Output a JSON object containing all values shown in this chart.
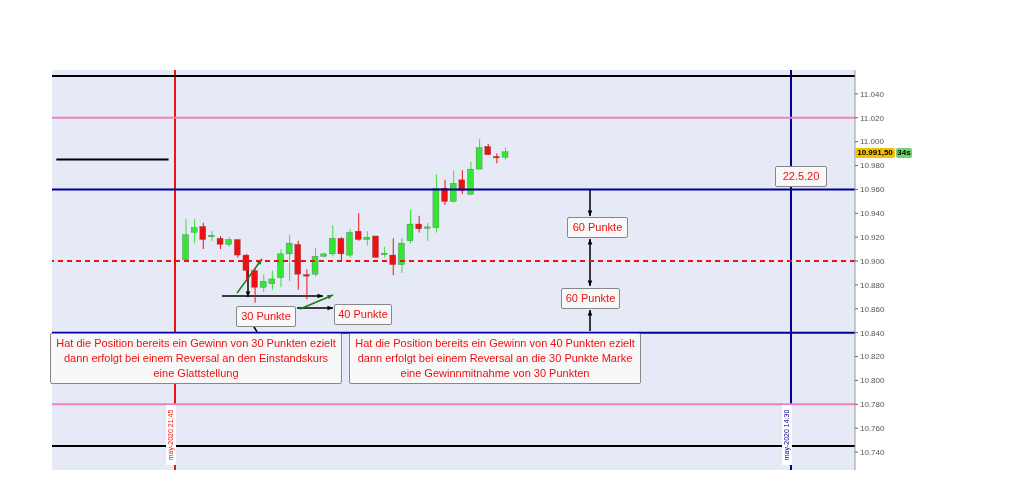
{
  "chart_data": {
    "type": "candlestick",
    "categories": [
      null,
      null,
      null,
      null,
      null,
      null,
      null,
      null,
      null,
      null,
      null,
      null,
      null,
      null,
      null,
      null,
      null,
      null,
      null,
      null,
      null,
      null,
      null,
      null,
      null,
      null,
      null,
      null,
      null,
      null,
      null,
      null,
      null,
      null,
      null,
      null,
      null,
      null,
      null,
      null,
      null,
      null,
      null,
      null,
      null,
      null,
      null,
      null,
      null,
      null,
      null,
      null,
      null,
      null,
      null,
      null,
      null,
      null,
      null,
      null,
      null,
      null,
      null,
      null,
      null,
      null,
      null,
      null,
      null,
      null,
      null,
      null,
      null,
      null,
      null,
      null,
      null,
      null,
      null,
      null,
      null,
      null,
      null,
      null,
      null,
      null,
      null,
      null,
      null,
      null,
      null,
      null,
      null
    ],
    "ohlc": [
      null,
      null,
      null,
      null,
      null,
      null,
      null,
      null,
      null,
      null,
      null,
      null,
      null,
      null,
      null,
      [
        10901,
        10935,
        10900,
        10922
      ],
      [
        10924,
        10935,
        10915,
        10928
      ],
      [
        10929,
        10932,
        10910,
        10918
      ],
      [
        10920,
        10925,
        10917,
        10921
      ],
      [
        10919,
        10921,
        10910,
        10914
      ],
      [
        10914,
        10920,
        10912,
        10918
      ],
      [
        10918,
        10918,
        10903,
        10905
      ],
      [
        10905,
        10906,
        10883,
        10892
      ],
      [
        10892,
        10894,
        10865,
        10878
      ],
      [
        10878,
        10889,
        10874,
        10883
      ],
      [
        10881,
        10892,
        10876,
        10885
      ],
      [
        10886,
        10910,
        10878,
        10906
      ],
      [
        10906,
        10922,
        10883,
        10915
      ],
      [
        10914,
        10917,
        10876,
        10889
      ],
      [
        10888,
        10893,
        10868,
        10888
      ],
      [
        10889,
        10911,
        10887,
        10904
      ],
      [
        10904,
        10907,
        10903,
        10906
      ],
      [
        10906,
        10930,
        10904,
        10919
      ],
      [
        10919,
        10920,
        10900,
        10906
      ],
      [
        10905,
        10927,
        10903,
        10924
      ],
      [
        10925,
        10940,
        10917,
        10918
      ],
      [
        10918,
        10925,
        10913,
        10920
      ],
      [
        10921,
        10921,
        10903,
        10903
      ],
      [
        10905,
        10912,
        10903,
        10906
      ],
      [
        10905,
        10919,
        10888,
        10897
      ],
      [
        10897,
        10919,
        10890,
        10915
      ],
      [
        10917,
        10943,
        10915,
        10931
      ],
      [
        10931,
        10938,
        10924,
        10927
      ],
      [
        10927,
        10932,
        10917,
        10928
      ],
      [
        10928,
        10973,
        10924,
        10961
      ],
      [
        10961,
        10968,
        10947,
        10950
      ],
      [
        10950,
        10976,
        10949,
        10965
      ],
      [
        10968,
        10976,
        10956,
        10959
      ],
      [
        10956,
        10983,
        10955,
        10977
      ],
      [
        10977,
        11002,
        10977,
        10995
      ],
      [
        10996,
        10998,
        10989,
        10989
      ],
      [
        10987,
        10990,
        10982,
        10987
      ],
      [
        10987,
        10995,
        10985,
        10991.5
      ],
      null,
      null,
      null,
      null,
      null,
      null,
      null,
      null,
      null,
      null,
      null,
      null,
      null,
      null,
      null,
      null,
      null,
      null,
      null,
      null,
      null,
      null,
      null,
      null,
      null,
      null,
      null,
      null,
      null,
      null,
      null,
      null,
      null,
      null,
      null,
      null,
      null,
      null,
      null,
      null
    ],
    "colors": [
      null,
      null,
      null,
      null,
      null,
      null,
      null,
      null,
      null,
      null,
      null,
      null,
      null,
      null,
      null,
      "#33e633",
      "#33e633",
      "#ee1111",
      "#33e633",
      "#ee1111",
      "#33e633",
      "#ee1111",
      "#ee1111",
      "#ee1111",
      "#33e633",
      "#33e633",
      "#33e633",
      "#33e633",
      "#ee1111",
      "#ee1111",
      "#33e633",
      "#33e633",
      "#33e633",
      "#ee1111",
      "#33e633",
      "#ee1111",
      "#33e633",
      "#ee1111",
      "#33e633",
      "#ee1111",
      "#33e633",
      "#33e633",
      "#ee1111",
      "#33e633",
      "#33e633",
      "#ee1111",
      "#33e633",
      "#ee1111",
      "#33e633",
      "#33e633",
      "#ee1111",
      "#ee1111",
      "#33e633",
      null,
      null,
      null,
      null,
      null,
      null,
      null,
      null,
      null,
      null,
      null,
      null,
      null,
      null,
      null,
      null,
      null,
      null,
      null,
      null,
      null,
      null,
      null,
      null,
      null,
      null,
      null,
      null,
      null,
      null,
      null,
      null,
      null,
      null,
      null,
      null,
      null,
      null,
      null,
      null
    ],
    "series": [
      {
        "type": "line",
        "color": "#000000",
        "values": [
          10985,
          10985,
          10985,
          10985,
          10985,
          10985,
          10985,
          10985,
          10985,
          10985,
          10985,
          10985,
          10985,
          10985,
          null,
          null,
          null,
          null,
          null,
          null,
          null,
          null,
          null,
          null,
          null,
          null,
          null,
          null,
          null,
          null,
          null,
          null,
          null,
          null,
          null,
          null,
          null,
          null,
          null,
          null,
          null,
          null,
          null,
          null,
          null,
          null,
          null,
          null,
          null,
          null,
          null,
          null,
          null,
          null,
          null,
          null,
          null,
          null,
          null,
          null,
          null,
          null,
          null,
          null,
          null,
          null,
          null,
          null,
          null,
          null,
          null,
          null,
          null,
          null,
          null,
          null,
          null,
          null,
          null,
          null,
          null,
          null,
          null,
          null,
          null,
          null,
          null,
          null,
          null,
          null,
          null,
          null,
          null
        ]
      }
    ],
    "ylim": [
      10725,
      11060
    ],
    "yticks": [
      {
        "value": 10740,
        "label": "10.740"
      },
      {
        "value": 10760,
        "label": "10.760"
      },
      {
        "value": 10780,
        "label": "10.780"
      },
      {
        "value": 10800,
        "label": "10.800"
      },
      {
        "value": 10820,
        "label": "10.820"
      },
      {
        "value": 10840,
        "label": "10.840"
      },
      {
        "value": 10860,
        "label": "10.860"
      },
      {
        "value": 10880,
        "label": "10.880"
      },
      {
        "value": 10900,
        "label": "10.900"
      },
      {
        "value": 10920,
        "label": "10.920"
      },
      {
        "value": 10940,
        "label": "10.940"
      },
      {
        "value": 10960,
        "label": "10.960"
      },
      {
        "value": 10980,
        "label": "10.980"
      },
      {
        "value": 11000,
        "label": "11.000"
      },
      {
        "value": 11020,
        "label": "11.020"
      },
      {
        "value": 11040,
        "label": "11.040"
      }
    ],
    "tick_labels": "y",
    "ref_lines": [
      {
        "axis": "y",
        "value": 11055,
        "color": "#000000"
      },
      {
        "axis": "y",
        "value": 11020,
        "color": "#f080c0"
      },
      {
        "axis": "y",
        "value": 10960,
        "color": "#000099"
      },
      {
        "axis": "y",
        "value": 10900,
        "color": "#ee1111",
        "line_style": "dashed"
      },
      {
        "axis": "y",
        "value": 10840,
        "color": "#000099"
      },
      {
        "axis": "y",
        "value": 10780,
        "color": "#f080c0"
      },
      {
        "axis": "y",
        "value": 10745,
        "color": "#000000"
      }
    ],
    "annotations": [
      "30 Punkte",
      "40 Punkte",
      "60 Punkte",
      "60 Punkte",
      "Hat die Position bereits ein Gewinn von 30 Punkten ezielt\ndann erfolgt bei einem Reversal an den Einstandskurs\neine Glattstellung",
      "Hat die Position bereits ein Gewinn von 40 Punkten ezielt\ndann erfolgt bei einem Reversal an die 30 Punkte Marke\neine Gewinnmitnahme von 30 Punkten",
      "22.5.20",
      "10.991,50",
      "34s",
      "may-2020 21:45",
      "may-2020 14:30"
    ]
  }
}
